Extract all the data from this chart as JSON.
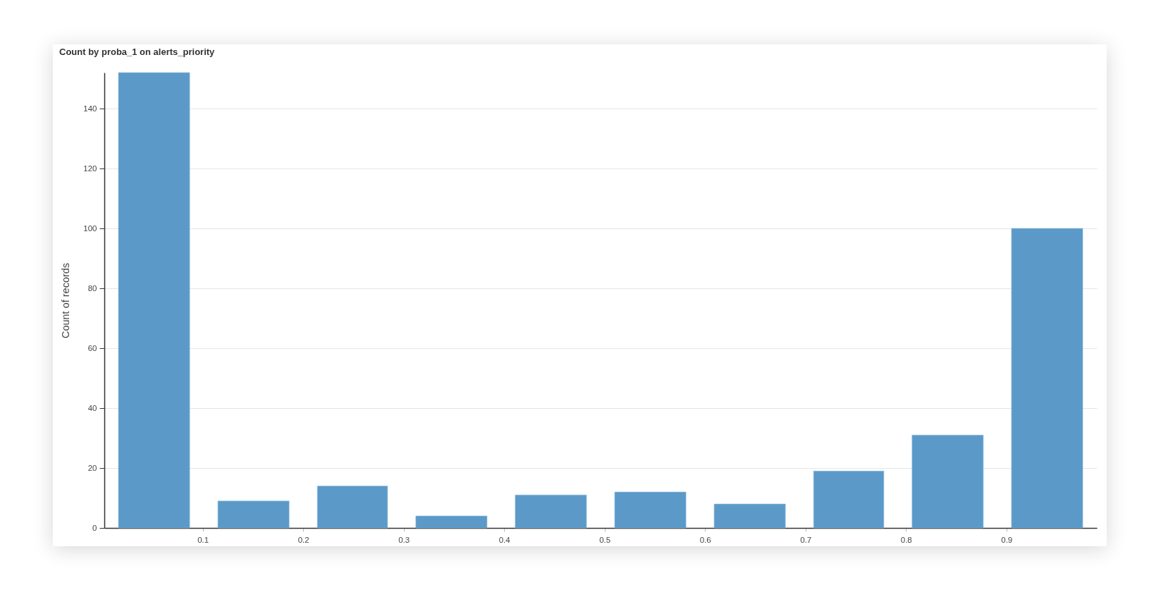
{
  "chart_data": {
    "type": "histogram",
    "title": "Count by proba_1 on alerts_priority",
    "ylabel": "Count of records",
    "bins": [
      0.002,
      0.101,
      0.2,
      0.298,
      0.397,
      0.496,
      0.595,
      0.694,
      0.792,
      0.891,
      0.99
    ],
    "values": [
      152,
      9,
      14,
      4,
      11,
      12,
      8,
      19,
      31,
      100
    ],
    "color": "#5b9ac8",
    "xlim": [
      0.002,
      0.99
    ],
    "xticks": [
      0.1,
      0.2,
      0.3,
      0.4,
      0.5,
      0.6,
      0.7,
      0.8,
      0.9
    ],
    "ylim": [
      0,
      152
    ],
    "yticks": [
      0,
      20,
      40,
      60,
      80,
      100,
      120,
      140
    ],
    "grid": "y"
  }
}
